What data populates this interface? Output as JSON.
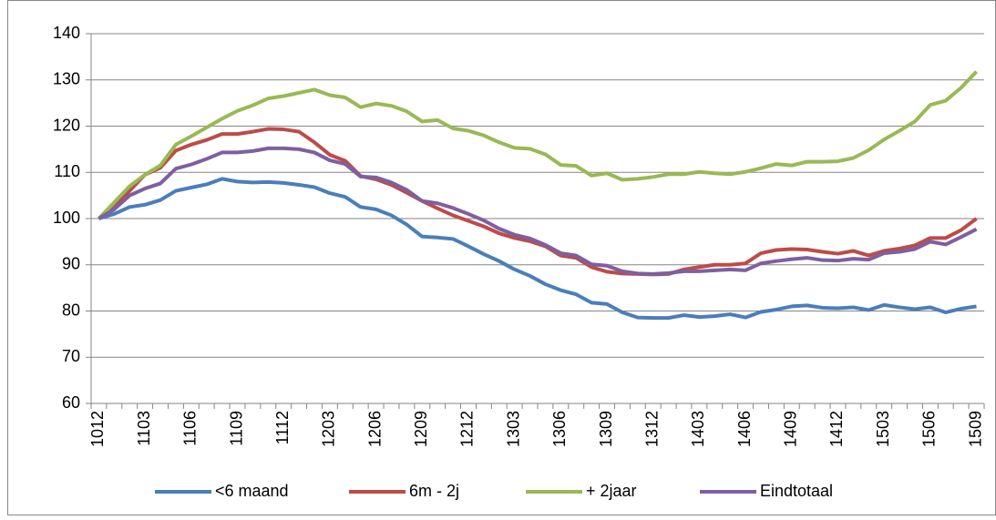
{
  "chart_data": {
    "type": "line",
    "categories": [
      "1012",
      null,
      null,
      "1103",
      null,
      null,
      "1106",
      null,
      null,
      "1109",
      null,
      null,
      "1112",
      null,
      null,
      "1203",
      null,
      null,
      "1206",
      null,
      null,
      "1209",
      null,
      null,
      "1212",
      null,
      null,
      "1303",
      null,
      null,
      "1306",
      null,
      null,
      "1309",
      null,
      null,
      "1312",
      null,
      null,
      "1403",
      null,
      null,
      "1406",
      null,
      null,
      "1409",
      null,
      null,
      "1412",
      null,
      null,
      "1503",
      null,
      null,
      "1506",
      null,
      null,
      "1509"
    ],
    "series": [
      {
        "name": "<6 maand",
        "color": "#4a7ebb",
        "values": [
          100,
          101,
          102.5,
          103,
          104,
          106,
          106.7,
          107.4,
          108.6,
          108,
          107.8,
          107.9,
          107.7,
          107.3,
          106.8,
          105.5,
          104.7,
          102.5,
          102,
          100.7,
          98.7,
          96.1,
          95.9,
          95.6,
          94,
          92.3,
          90.8,
          89,
          87.6,
          85.8,
          84.5,
          83.6,
          81.8,
          81.5,
          79.7,
          78.6,
          78.5,
          78.5,
          79.1,
          78.7,
          78.9,
          79.3,
          78.6,
          79.8,
          80.3,
          81,
          81.2,
          80.7,
          80.6,
          80.8,
          80.2,
          81.3,
          80.8,
          80.4,
          80.8,
          79.7,
          80.5,
          81
        ]
      },
      {
        "name": "6m - 2j",
        "color": "#be4b48",
        "values": [
          100,
          102.5,
          106,
          109.5,
          111,
          114.7,
          116,
          117,
          118.3,
          118.3,
          118.8,
          119.4,
          119.3,
          118.8,
          116.5,
          113.8,
          112.5,
          109.2,
          108.5,
          107.3,
          105.6,
          103.8,
          102.2,
          100.7,
          99.5,
          98.3,
          96.8,
          95.8,
          95.1,
          94,
          92,
          91.5,
          89.5,
          88.5,
          88.1,
          88,
          87.9,
          88,
          89,
          89.5,
          90,
          90,
          90.3,
          92.5,
          93.2,
          93.4,
          93.3,
          92.8,
          92.4,
          93,
          92,
          93,
          93.5,
          94.2,
          95.8,
          95.8,
          97.5,
          100
        ]
      },
      {
        "name": "+ 2jaar",
        "color": "#98b954",
        "values": [
          100,
          103.5,
          107,
          109.5,
          111.5,
          116,
          117.8,
          119.7,
          121.6,
          123.3,
          124.5,
          126,
          126.5,
          127.2,
          127.9,
          126.7,
          126.2,
          124.1,
          124.9,
          124.4,
          123.2,
          121,
          121.3,
          119.5,
          119,
          118,
          116.5,
          115.3,
          115.1,
          113.9,
          111.6,
          111.4,
          109.3,
          109.8,
          108.4,
          108.6,
          109,
          109.6,
          109.6,
          110.1,
          109.8,
          109.6,
          110.1,
          110.9,
          111.8,
          111.5,
          112.3,
          112.3,
          112.4,
          113.1,
          114.8,
          117.1,
          119,
          121,
          124.6,
          125.5,
          128.3,
          131.8
        ]
      },
      {
        "name": "Eindtotaal",
        "color": "#7d60a0",
        "values": [
          100,
          102,
          105,
          106.5,
          107.6,
          110.8,
          111.7,
          112.9,
          114.3,
          114.3,
          114.6,
          115.2,
          115.2,
          115,
          114.3,
          112.6,
          111.8,
          109.1,
          108.9,
          107.8,
          106.2,
          103.8,
          103.3,
          102.3,
          101,
          99.6,
          97.8,
          96.5,
          95.7,
          94.3,
          92.5,
          92,
          90.1,
          89.8,
          88.6,
          88.1,
          88,
          88.2,
          88.6,
          88.6,
          88.8,
          89,
          88.8,
          90.3,
          90.8,
          91.2,
          91.5,
          91,
          90.9,
          91.3,
          91.1,
          92.5,
          92.8,
          93.4,
          95,
          94.4,
          96,
          97.7
        ]
      }
    ],
    "ylim": [
      60,
      140
    ],
    "yticks": [
      60,
      70,
      80,
      90,
      100,
      110,
      120,
      130,
      140
    ],
    "grid": true,
    "legend": "bottom"
  }
}
